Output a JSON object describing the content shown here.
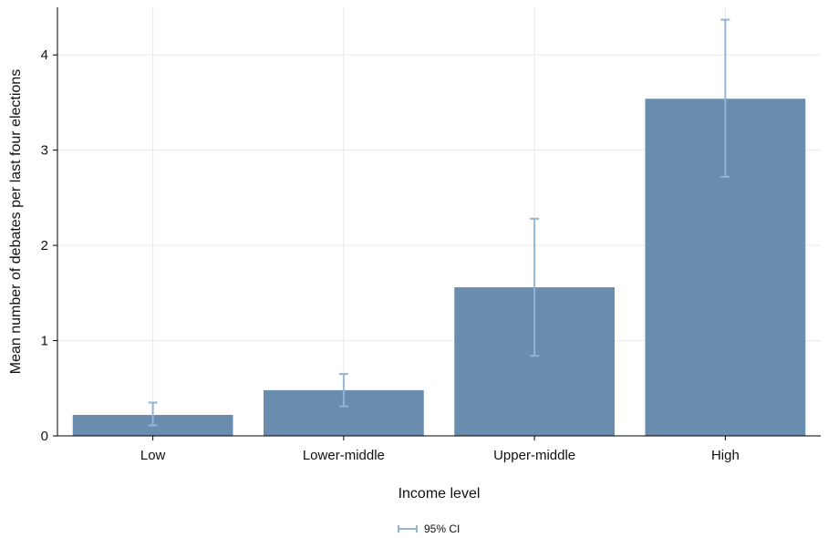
{
  "chart_data": {
    "type": "bar",
    "title": "",
    "xlabel": "Income level",
    "ylabel": "Mean number of debates per last four elections",
    "categories": [
      "Low",
      "Lower-middle",
      "Upper-middle",
      "High"
    ],
    "values": [
      0.22,
      0.48,
      1.56,
      3.54
    ],
    "ci_lower": [
      0.11,
      0.31,
      0.84,
      2.72
    ],
    "ci_upper": [
      0.35,
      0.65,
      2.28,
      4.37
    ],
    "ylim": [
      0,
      4.5
    ],
    "yticks": [
      0,
      1,
      2,
      3,
      4
    ],
    "grid": true,
    "legend": {
      "position": "bottom-center",
      "entries": [
        "95% CI"
      ]
    },
    "colors": {
      "bar": "#6a8caf",
      "ci": "#94b4d6",
      "grid": "#eaeaea",
      "axis": "#000000"
    }
  }
}
